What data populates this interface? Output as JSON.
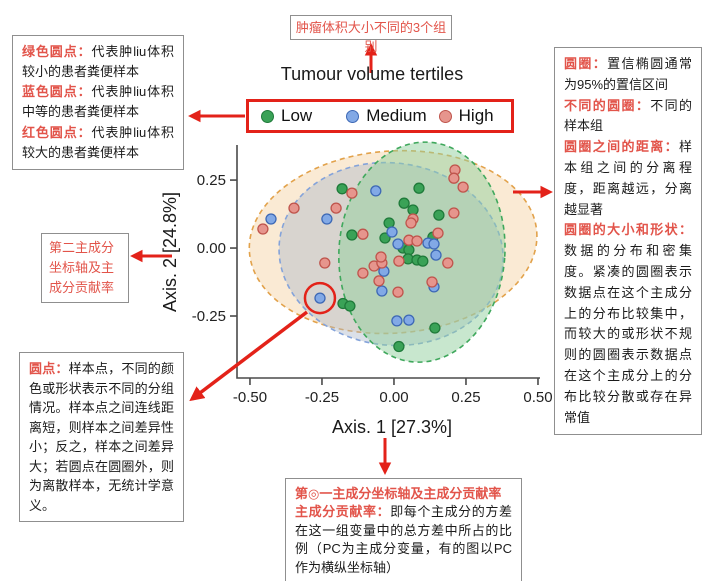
{
  "colors": {
    "accent_red": "#e32219",
    "annotation_red": "#e2544a",
    "box_border": "#8f8f8f",
    "axis_color": "#4a4a4a"
  },
  "annotations": {
    "group_box": {
      "text": "肿瘤体积大小不同的3个组别"
    },
    "dots_legend_box": {
      "items": [
        {
          "label": "绿色圆点：",
          "text": "代表肿liu体积较小的患者粪便样本"
        },
        {
          "label": "蓝色圆点：",
          "text": "代表肿liu体积中等的患者粪便样本"
        },
        {
          "label": "红色圆点：",
          "text": "代表肿liu体积较大的患者粪便样本"
        }
      ]
    },
    "axis2_box": {
      "text": "第二主成分坐标轴及主成分贡献率"
    },
    "ellipse_box": {
      "items": [
        {
          "label": "圆圈：",
          "text": "置信椭圆通常为95%的置信区间"
        },
        {
          "label": "不同的圆圈：",
          "text": "不同的样本组"
        },
        {
          "label": "圆圈之间的距离：",
          "text": "样本组之间的分离程度，距离越远，分离越显著"
        },
        {
          "label": "圆圈的大小和形状：",
          "text": "数据的分布和密集度。紧凑的圆圈表示数据点在这个主成分上的分布比较集中，而较大的或形状不规则的圆圈表示数据点在这个主成分上的分布比较分散或存在异常值"
        }
      ]
    },
    "points_box": {
      "items": [
        {
          "label": "圆点：",
          "text": "样本点，不同的颜色或形状表示不同的分组情况。样本点之间连线距离短，则样本之间差异性小；反之，样本之间差异大；若圆点在圆圈外，则为离散样本，无统计学意义。"
        }
      ]
    },
    "axis1_box": {
      "title": "第◎一主成分坐标轴及主成分贡献率",
      "items": [
        {
          "label": "主成分贡献率：",
          "text": "即每个主成分的方差在这一组变量中的总方差中所占的比例（PC为主成分变量，有的图以PC作为横纵坐标轴）"
        }
      ]
    }
  },
  "chart_data": {
    "type": "scatter",
    "title": "Tumour volume tertiles",
    "xlabel": "Axis. 1 [27.3%]",
    "ylabel": "Axis. 2 [24.8%]",
    "xlim": [
      -0.545,
      0.507
    ],
    "ylim": [
      -0.478,
      0.379
    ],
    "x_ticks": [
      -0.5,
      -0.25,
      0,
      0.25,
      0.5
    ],
    "y_ticks": [
      0.25,
      0,
      -0.25
    ],
    "grid": false,
    "legend": {
      "position": "top",
      "items": [
        {
          "label": "Low",
          "fill": "#3aa257",
          "stroke": "#1f7a3a"
        },
        {
          "label": "Medium",
          "fill": "#82a9e6",
          "stroke": "#3d68b5"
        },
        {
          "label": "High",
          "fill": "#e6958d",
          "stroke": "#bf544c"
        }
      ]
    },
    "series": [
      {
        "name": "Low",
        "marker_fill": "#3aa257",
        "marker_stroke": "#1f7a3a",
        "points": [
          [
            -0.18,
            0.218
          ],
          [
            0.087,
            0.22
          ],
          [
            0.035,
            0.165
          ],
          [
            0.066,
            0.14
          ],
          [
            0.156,
            0.121
          ],
          [
            -0.017,
            0.092
          ],
          [
            -0.031,
            0.037
          ],
          [
            -0.146,
            0.048
          ],
          [
            0.135,
            0.04
          ],
          [
            0.031,
            0.0
          ],
          [
            0.052,
            -0.007
          ],
          [
            0.049,
            -0.04
          ],
          [
            0.08,
            -0.044
          ],
          [
            0.1,
            -0.048
          ],
          [
            -0.177,
            -0.204
          ],
          [
            -0.153,
            -0.213
          ],
          [
            0.142,
            -0.294
          ],
          [
            0.017,
            -0.362
          ]
        ]
      },
      {
        "name": "Medium",
        "marker_fill": "#82a9e6",
        "marker_stroke": "#3d68b5",
        "points": [
          [
            -0.427,
            0.107
          ],
          [
            -0.233,
            0.107
          ],
          [
            -0.063,
            0.21
          ],
          [
            -0.007,
            0.059
          ],
          [
            0.014,
            0.015
          ],
          [
            0.118,
            0.018
          ],
          [
            0.139,
            0.015
          ],
          [
            0.146,
            -0.026
          ],
          [
            -0.035,
            -0.085
          ],
          [
            0.139,
            -0.143
          ],
          [
            -0.042,
            -0.158
          ],
          [
            -0.257,
            -0.184
          ],
          [
            0.01,
            -0.268
          ],
          [
            0.052,
            -0.265
          ]
        ]
      },
      {
        "name": "High",
        "marker_fill": "#e6958d",
        "marker_stroke": "#bf544c",
        "points": [
          [
            0.212,
            0.287
          ],
          [
            0.208,
            0.257
          ],
          [
            0.24,
            0.224
          ],
          [
            -0.455,
            0.07
          ],
          [
            -0.347,
            0.147
          ],
          [
            -0.201,
            0.147
          ],
          [
            -0.146,
            0.202
          ],
          [
            0.208,
            0.129
          ],
          [
            0.066,
            0.107
          ],
          [
            0.059,
            0.092
          ],
          [
            -0.108,
            0.051
          ],
          [
            0.052,
            0.029
          ],
          [
            0.08,
            0.026
          ],
          [
            0.153,
            0.055
          ],
          [
            -0.24,
            -0.055
          ],
          [
            -0.069,
            -0.066
          ],
          [
            -0.042,
            -0.055
          ],
          [
            -0.045,
            -0.033
          ],
          [
            0.017,
            -0.048
          ],
          [
            0.187,
            -0.055
          ],
          [
            -0.108,
            -0.092
          ],
          [
            -0.052,
            -0.121
          ],
          [
            0.132,
            -0.125
          ],
          [
            0.014,
            -0.162
          ]
        ]
      }
    ],
    "ellipses": [
      {
        "group": "High",
        "cx": -0.003,
        "cy": 0.022,
        "rx": 0.5,
        "ry": 0.335,
        "rotate": -4,
        "stroke": "#e2a24b",
        "fill": "#f3c78f",
        "fill_opacity": 0.38
      },
      {
        "group": "Medium",
        "cx": -0.01,
        "cy": -0.022,
        "rx": 0.39,
        "ry": 0.335,
        "rotate": 7,
        "stroke": "#84a3da",
        "fill": "#aab6c9",
        "fill_opacity": 0.42
      },
      {
        "group": "Low",
        "cx": 0.097,
        "cy": -0.015,
        "rx": 0.288,
        "ry": 0.405,
        "rotate": 4,
        "stroke": "#3fa85c",
        "fill": "#92cf9e",
        "fill_opacity": 0.5
      }
    ],
    "highlight_circle": {
      "x": -0.257,
      "y": -0.184,
      "radius_px": 15
    }
  }
}
